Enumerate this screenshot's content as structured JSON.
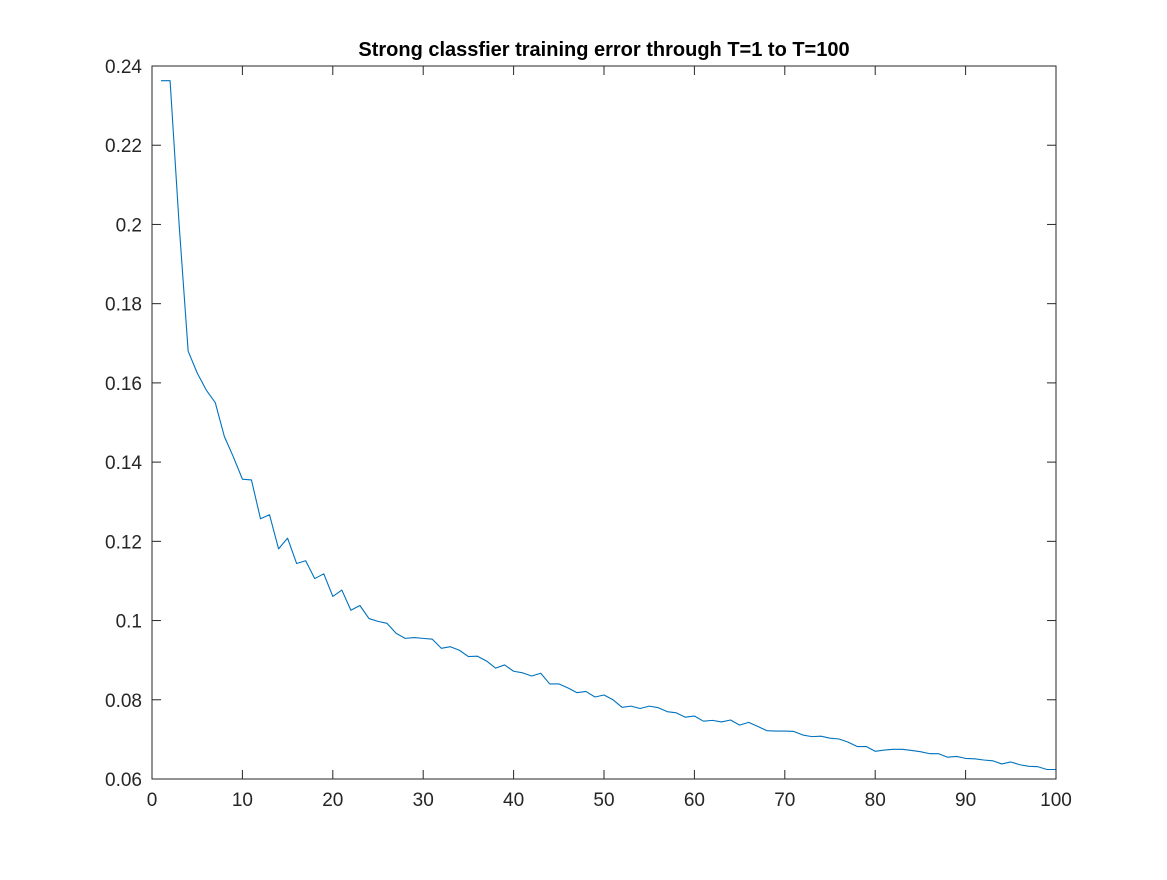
{
  "chart_data": {
    "type": "line",
    "title": "Strong classfier training error through T=1 to T=100",
    "xlabel": "",
    "ylabel": "",
    "xlim": [
      0,
      100
    ],
    "ylim": [
      0.06,
      0.24
    ],
    "xticks": [
      0,
      10,
      20,
      30,
      40,
      50,
      60,
      70,
      80,
      90,
      100
    ],
    "yticks": [
      0.06,
      0.08,
      0.1,
      0.12,
      0.14,
      0.16,
      0.18,
      0.2,
      0.22,
      0.24
    ],
    "xtick_labels": [
      "0",
      "10",
      "20",
      "30",
      "40",
      "50",
      "60",
      "70",
      "80",
      "90",
      "100"
    ],
    "ytick_labels": [
      "0.06",
      "0.08",
      "0.1",
      "0.12",
      "0.14",
      "0.16",
      "0.18",
      "0.2",
      "0.22",
      "0.24"
    ],
    "grid": false,
    "line_color": "#0072BD",
    "series": [
      {
        "x": [
          1,
          2,
          3,
          4,
          5,
          6,
          7,
          8,
          9,
          10,
          11,
          12,
          13,
          14,
          15,
          16,
          17,
          18,
          19,
          20,
          21,
          22,
          23,
          24,
          25,
          26,
          27,
          28,
          29,
          30,
          31,
          32,
          33,
          34,
          35,
          36,
          37,
          38,
          39,
          40,
          41,
          42,
          43,
          44,
          45,
          46,
          47,
          48,
          49,
          50,
          51,
          52,
          53,
          54,
          55,
          56,
          57,
          58,
          59,
          60,
          61,
          62,
          63,
          64,
          65,
          66,
          67,
          68,
          69,
          70,
          71,
          72,
          73,
          74,
          75,
          76,
          77,
          78,
          79,
          80,
          81,
          82,
          83,
          84,
          85,
          86,
          87,
          88,
          89,
          90,
          91,
          92,
          93,
          94,
          95,
          96,
          97,
          98,
          99,
          100
        ],
        "values": [
          0.2363,
          0.2363,
          0.2,
          0.168,
          0.1625,
          0.1582,
          0.155,
          0.1465,
          0.1413,
          0.1357,
          0.1355,
          0.1257,
          0.1267,
          0.1181,
          0.1208,
          0.1144,
          0.1151,
          0.1106,
          0.1118,
          0.1061,
          0.1077,
          0.1026,
          0.1038,
          0.1005,
          0.0998,
          0.0993,
          0.0968,
          0.0955,
          0.0957,
          0.0955,
          0.0953,
          0.093,
          0.0934,
          0.0925,
          0.0909,
          0.091,
          0.0898,
          0.088,
          0.0888,
          0.0872,
          0.0868,
          0.086,
          0.0867,
          0.084,
          0.084,
          0.083,
          0.0818,
          0.0821,
          0.0807,
          0.0812,
          0.08,
          0.0781,
          0.0784,
          0.0778,
          0.0784,
          0.078,
          0.077,
          0.0767,
          0.0756,
          0.0759,
          0.0746,
          0.0748,
          0.0744,
          0.0749,
          0.0736,
          0.0743,
          0.0733,
          0.0722,
          0.0721,
          0.0721,
          0.072,
          0.0711,
          0.0707,
          0.0708,
          0.0703,
          0.0701,
          0.0693,
          0.0682,
          0.0682,
          0.067,
          0.0673,
          0.0675,
          0.0675,
          0.0672,
          0.0669,
          0.0664,
          0.0664,
          0.0655,
          0.0657,
          0.0652,
          0.0651,
          0.0648,
          0.0646,
          0.0638,
          0.0643,
          0.0636,
          0.0632,
          0.0631,
          0.0624,
          0.0624
        ]
      }
    ]
  }
}
